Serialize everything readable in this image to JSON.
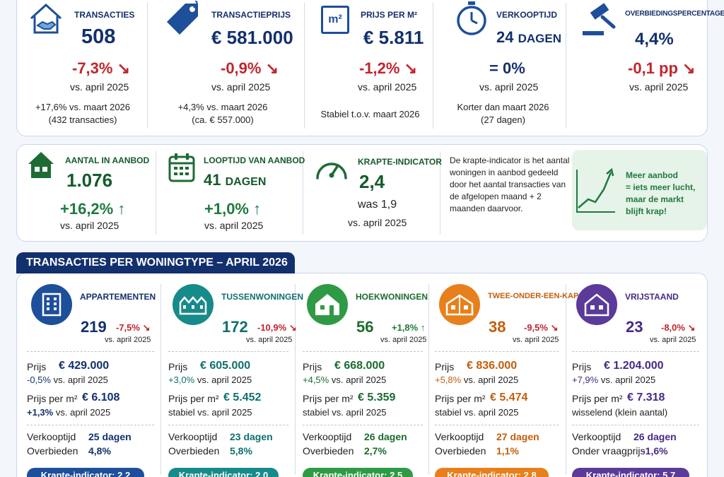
{
  "top_kpis": [
    {
      "title": "TRANSACTIES",
      "value": "508",
      "unit": "",
      "delta": "-7,3%",
      "vs": "vs. april 2025",
      "note1": "+17,6% vs. maart 2026",
      "note2": "(432 transacties)",
      "icon": "handshake-house-icon"
    },
    {
      "title": "TRANSACTIEPRIJS",
      "value": "€ 581.000",
      "unit": "",
      "delta": "-0,9%",
      "vs": "vs. april 2025",
      "note1": "+4,3% vs. maart 2026",
      "note2": "(ca.  € 557.000)",
      "icon": "price-tag-icon"
    },
    {
      "title": "PRIJS PER M²",
      "value": "€ 5.811",
      "unit": "",
      "delta": "-1,2%",
      "vs": "vs. april 2025",
      "note1": "Stabiel t.o.v. maart 2026",
      "note2": "",
      "icon": "square-meter-icon",
      "icon_text": "m²"
    },
    {
      "title": "VERKOOPTIJD",
      "value": "24",
      "unit": "DAGEN",
      "delta": "= 0%",
      "vs": "vs. april 2025",
      "note1": "Korter dan maart 2026",
      "note2": "(27 dagen)",
      "icon": "stopwatch-icon"
    },
    {
      "title": "OVERBIEDINGSPERCENTAGE",
      "value": "4,4%",
      "unit": "",
      "delta": "-0,1 pp",
      "vs": "vs. april 2025",
      "note1": "",
      "note2": "",
      "icon": "gavel-icon"
    }
  ],
  "supply": {
    "aanbod": {
      "title": "AANTAL IN AANBOD",
      "value": "1.076",
      "delta": "+16,2%",
      "vs": "vs. april 2025",
      "icon": "house-icon"
    },
    "looptijd": {
      "title": "LOOPTIJD VAN AANBOD",
      "value": "41",
      "unit": "DAGEN",
      "delta": "+1,0%",
      "vs": "vs. april 2025",
      "icon": "calendar-icon"
    },
    "krapte": {
      "title": "KRAPTE-INDICATOR",
      "value": "2,4",
      "was": "was 1,9",
      "vs": "vs. april 2025",
      "icon": "gauge-icon"
    },
    "explanation": "De krapte-indicator is het aantal woningen in aanbod gedeeld door het aantal transacties van de afgelopen maand + 2 maanden daarvoor.",
    "highlight": [
      "Meer aanbod",
      "= iets meer lucht,",
      "maar de markt",
      "blijft krap!"
    ]
  },
  "section_title": "TRANSACTIES PER WONINGTYPE – APRIL 2026",
  "labels": {
    "prijs": "Prijs",
    "prijs_m2": "Prijs per m²",
    "verkooptijd": "Verkooptijd",
    "overbieden": "Overbieden",
    "vs": "vs. april 2025"
  },
  "types": [
    {
      "name": "APPARTEMENTEN",
      "color": "#1d4f9a",
      "dark": "#13306e",
      "count": "219",
      "delta": "-7,5%",
      "price": "€ 429.000",
      "price_delta": "-0,5%",
      "m2": "€ 6.108",
      "m2_delta": "+1,3%",
      "days": "25 dagen",
      "over_label": "Overbieden",
      "over": "4,8%",
      "pill": "Krapte-indicator: 2,2",
      "icon": "apartment-icon"
    },
    {
      "name": "TUSSENWONINGEN",
      "color": "#178a8a",
      "dark": "#0f6f6f",
      "count": "172",
      "delta": "-10,9%",
      "price": "€ 605.000",
      "price_delta": "+3,0%",
      "m2": "€ 5.452",
      "m2_delta": "stabiel",
      "days": "23 dagen",
      "over_label": "Overbieden",
      "over": "5,8%",
      "pill": "Krapte-indicator: 2,0",
      "icon": "row-houses-icon"
    },
    {
      "name": "HOEKWONINGEN",
      "color": "#2f9a45",
      "dark": "#1d6b2f",
      "count": "56",
      "delta": "+1,8%",
      "price": "€ 668.000",
      "price_delta": "+4,5%",
      "m2": "€ 5.359",
      "m2_delta": "stabiel",
      "days": "26 dagen",
      "over_label": "Overbieden",
      "over": "2,7%",
      "pill": "Krapte-indicator: 2,5",
      "icon": "corner-house-icon"
    },
    {
      "name": "TWEE-ONDER-EEN-KAP",
      "color": "#e7801c",
      "dark": "#c35f0c",
      "count": "38",
      "delta": "-9,5%",
      "price": "€ 836.000",
      "price_delta": "+5,8%",
      "m2": "€ 5.474",
      "m2_delta": "stabiel",
      "days": "27 dagen",
      "over_label": "Overbieden",
      "over": "1,1%",
      "pill": "Krapte-indicator: 2,8",
      "icon": "semi-detached-icon"
    },
    {
      "name": "VRIJSTAAND",
      "color": "#5b3a9a",
      "dark": "#472a84",
      "count": "23",
      "delta": "-8,0%",
      "price": "€ 1.204.000",
      "price_delta": "+7,9%",
      "m2": "€ 7.318",
      "m2_delta": "wisselend (klein aantal)",
      "days": "26 dagen",
      "over_label": "Onder vraagprijs",
      "over": "-1,6%",
      "pill": "Krapte-indicator: 5,7",
      "icon": "detached-house-icon"
    }
  ]
}
